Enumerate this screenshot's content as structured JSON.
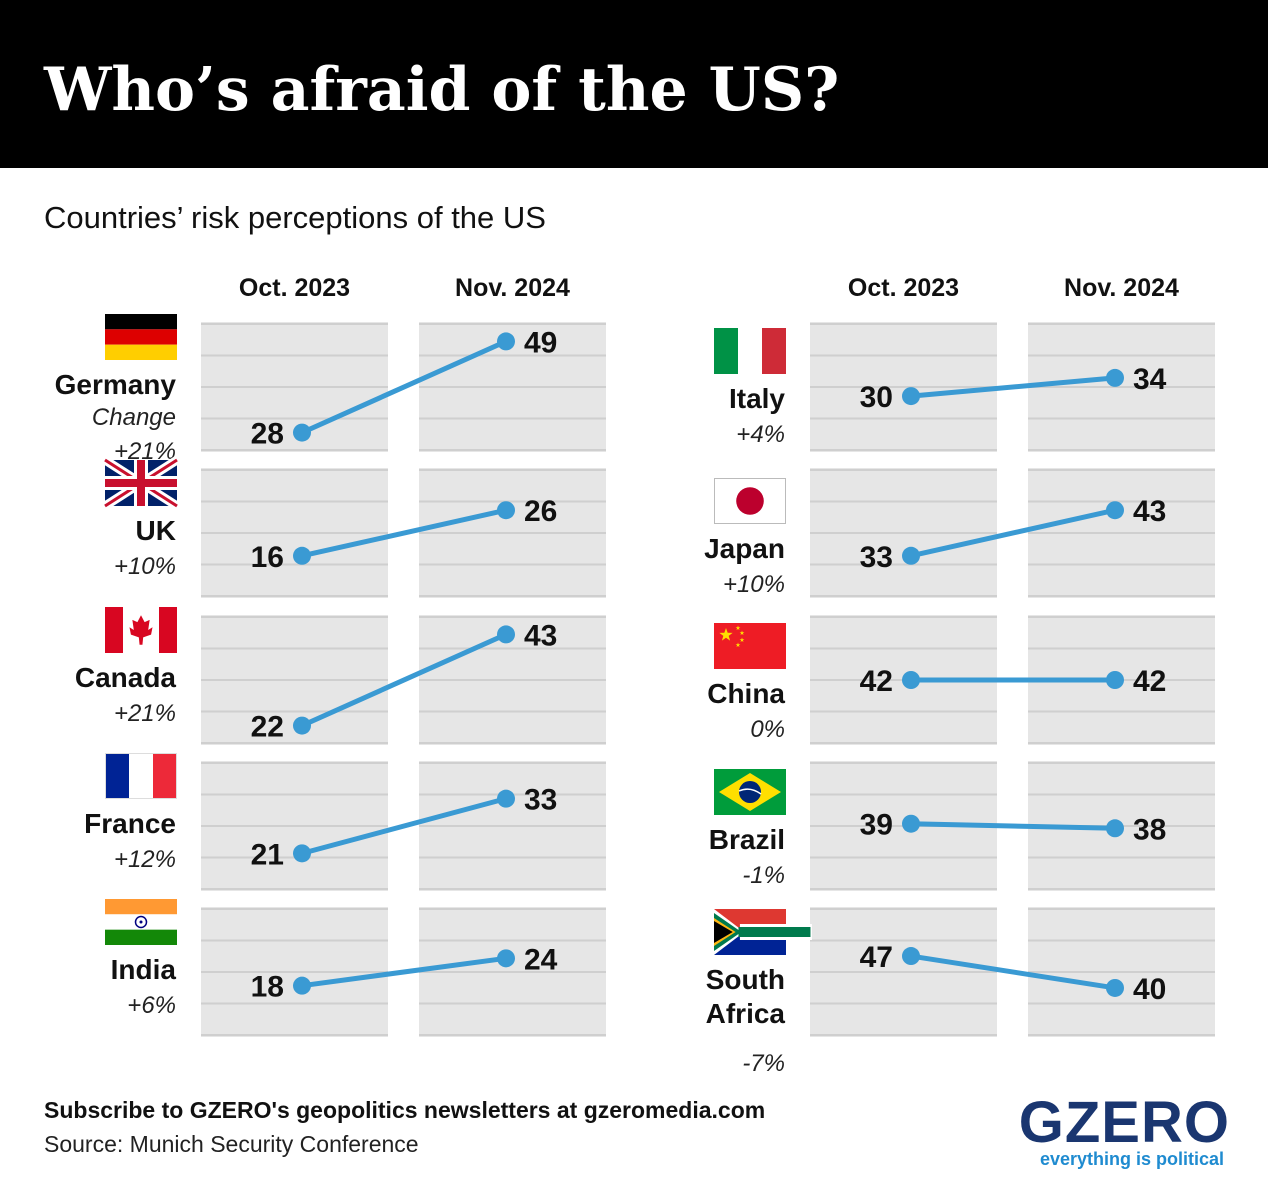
{
  "title": "Who’s afraid of the US?",
  "subtitle": "Countries’ risk perceptions of the US",
  "column_headers": [
    "Oct. 2023",
    "Nov. 2024"
  ],
  "change_label": "Change",
  "footer": {
    "subscribe": "Subscribe to GZERO's geopolitics newsletters at gzeromedia.com",
    "source": "Source: Munich Security Conference"
  },
  "logo": {
    "name": "GZERO",
    "tagline": "everything is political"
  },
  "colors": {
    "line": "#3a9ad3",
    "panel": "#e6e6e6",
    "gridline": "#cfcfcf",
    "header_bg": "#000000"
  },
  "chart_data": {
    "type": "slope",
    "categories": [
      "Oct. 2023",
      "Nov. 2024"
    ],
    "ylim": [
      0,
      100
    ],
    "series": [
      {
        "name": "Germany",
        "values": [
          28,
          49
        ],
        "change": "+21%",
        "flag": "germany"
      },
      {
        "name": "UK",
        "values": [
          16,
          26
        ],
        "change": "+10%",
        "flag": "uk"
      },
      {
        "name": "Canada",
        "values": [
          22,
          43
        ],
        "change": "+21%",
        "flag": "canada"
      },
      {
        "name": "France",
        "values": [
          21,
          33
        ],
        "change": "+12%",
        "flag": "france"
      },
      {
        "name": "India",
        "values": [
          18,
          24
        ],
        "change": "+6%",
        "flag": "india"
      },
      {
        "name": "Italy",
        "values": [
          30,
          34
        ],
        "change": "+4%",
        "flag": "italy"
      },
      {
        "name": "Japan",
        "values": [
          33,
          43
        ],
        "change": "+10%",
        "flag": "japan"
      },
      {
        "name": "China",
        "values": [
          42,
          42
        ],
        "change": "0%",
        "flag": "china"
      },
      {
        "name": "Brazil",
        "values": [
          39,
          38
        ],
        "change": "-1%",
        "flag": "brazil"
      },
      {
        "name": "South Africa",
        "values": [
          47,
          40
        ],
        "change": "-7%",
        "flag": "south-africa"
      }
    ]
  }
}
